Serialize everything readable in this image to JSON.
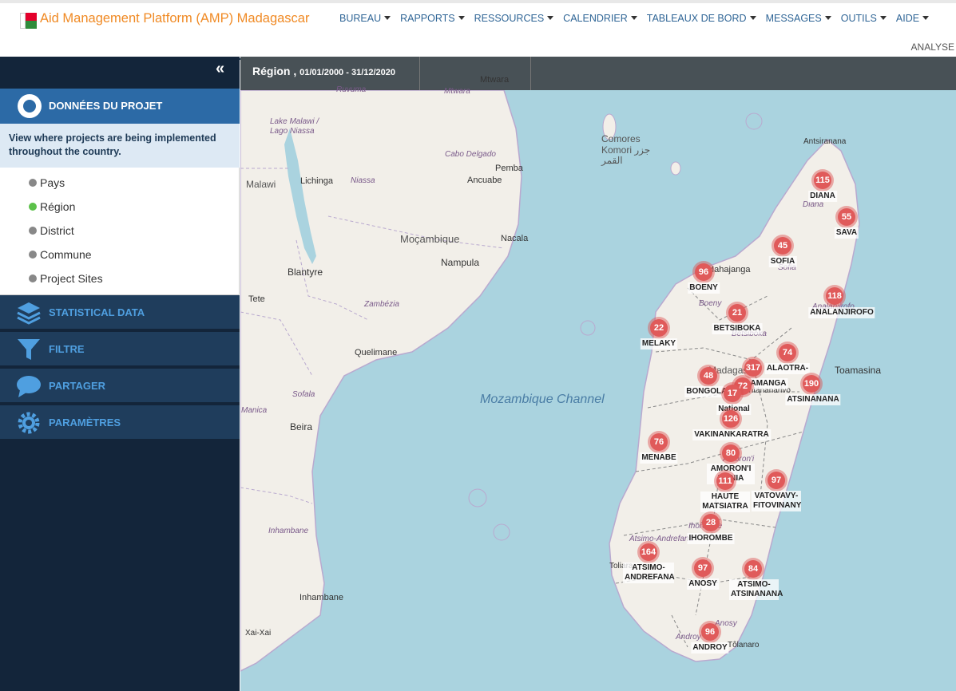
{
  "header": {
    "title": "Aid Management Platform (AMP) Madagascar",
    "nav": [
      {
        "label": "BUREAU"
      },
      {
        "label": "RAPPORTS"
      },
      {
        "label": "RESSOURCES"
      },
      {
        "label": "CALENDRIER"
      },
      {
        "label": "TABLEAUX DE BORD"
      },
      {
        "label": "MESSAGES"
      },
      {
        "label": "OUTILS"
      },
      {
        "label": "AIDE"
      }
    ],
    "sub_link": "ANALYSE"
  },
  "sidebar": {
    "collapse_glyph": "«",
    "project_data": {
      "title": "DONNÉES DU PROJET",
      "description": "View where projects are being implemented throughout the country.",
      "levels": [
        {
          "label": "Pays",
          "active": false
        },
        {
          "label": "Région",
          "active": true
        },
        {
          "label": "District",
          "active": false
        },
        {
          "label": "Commune",
          "active": false
        },
        {
          "label": "Project Sites",
          "active": false
        }
      ]
    },
    "sections": [
      {
        "label": "STATISTICAL DATA",
        "icon": "layers-icon"
      },
      {
        "label": "FILTRE",
        "icon": "funnel-icon"
      },
      {
        "label": "PARTAGER",
        "icon": "speech-bubble-icon"
      },
      {
        "label": "PARAMÈTRES",
        "icon": "gear-icon"
      }
    ]
  },
  "map": {
    "filter_level": "Région ,",
    "filter_dates": "01/01/2000 - 31/12/2020",
    "place_labels": [
      "Mtwara",
      "Ruvuma",
      "Mtwara",
      "Lake Malawi / Lago Niassa",
      "Cabo Delgado",
      "Pemba",
      "Ancuabe",
      "Malawi",
      "Lichinga",
      "Niassa",
      "Moçambique",
      "Nacala",
      "Nampula",
      "Blantyre",
      "Tete",
      "Zambézia",
      "Quelimane",
      "Sofala",
      "Manica",
      "Beira",
      "Inhambane",
      "Inhambane",
      "Xai-Xai",
      "Comores",
      "Komori جزر القمر",
      "Antsiranana",
      "Diana",
      "Sofia",
      "Mahajanga",
      "Boeny",
      "Betsiboka",
      "Toamasina",
      "Madagascar",
      "Antananarivo",
      "Analanjirofo",
      "Amoron'i",
      "Ihorombe",
      "Atsimo-Andrefana",
      "Toliara",
      "Anosy",
      "Androy",
      "Tôlanaro"
    ],
    "sea_label": "Mozambique Channel",
    "clusters": [
      {
        "value": "115",
        "region": "DIANA"
      },
      {
        "value": "55",
        "region": "SAVA"
      },
      {
        "value": "45",
        "region": "SOFIA"
      },
      {
        "value": "96",
        "region": "BOENY"
      },
      {
        "value": "118",
        "region": "ANALANJIROFO"
      },
      {
        "value": "21",
        "region": "BETSIBOKA"
      },
      {
        "value": "22",
        "region": "MELAKY"
      },
      {
        "value": "74",
        "region": "ALAOTRA-"
      },
      {
        "value": "317",
        "region": "AMANGA"
      },
      {
        "value": "48",
        "region": "BONGOLAVA"
      },
      {
        "value": "72",
        "region": ""
      },
      {
        "value": "17",
        "region": "National"
      },
      {
        "value": "190",
        "region": "ATSINANANA"
      },
      {
        "value": "126",
        "region": "VAKINANKARATRA"
      },
      {
        "value": "76",
        "region": "MENABE"
      },
      {
        "value": "80",
        "region": "AMORON'I MANIA"
      },
      {
        "value": "111",
        "region": "HAUTE MATSIATRA"
      },
      {
        "value": "97",
        "region": "VATOVAVY-FITOVINANY"
      },
      {
        "value": "28",
        "region": "IHOROMBE"
      },
      {
        "value": "164",
        "region": "ATSIMO-ANDREFANA"
      },
      {
        "value": "97",
        "region": "ANOSY"
      },
      {
        "value": "84",
        "region": "ATSIMO-ATSINANANA"
      },
      {
        "value": "96",
        "region": "ANDROY"
      }
    ]
  }
}
